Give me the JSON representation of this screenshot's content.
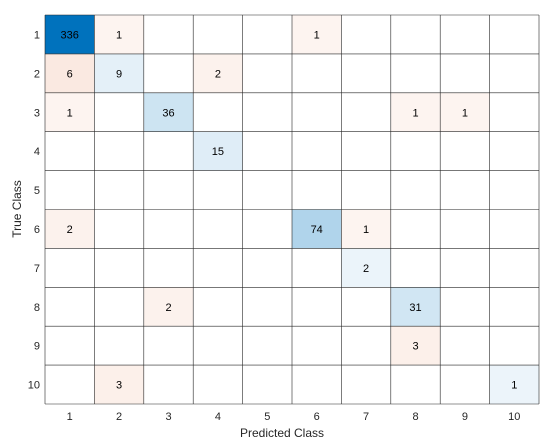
{
  "chart_data": {
    "type": "heatmap",
    "title": "",
    "xlabel": "Predicted Class",
    "ylabel": "True Class",
    "x_categories": [
      "1",
      "2",
      "3",
      "4",
      "5",
      "6",
      "7",
      "8",
      "9",
      "10"
    ],
    "y_categories": [
      "1",
      "2",
      "3",
      "4",
      "5",
      "6",
      "7",
      "8",
      "9",
      "10"
    ],
    "matrix": [
      [
        336,
        1,
        0,
        0,
        0,
        1,
        0,
        0,
        0,
        0
      ],
      [
        6,
        9,
        0,
        2,
        0,
        0,
        0,
        0,
        0,
        0
      ],
      [
        1,
        0,
        36,
        0,
        0,
        0,
        0,
        1,
        1,
        0
      ],
      [
        0,
        0,
        0,
        15,
        0,
        0,
        0,
        0,
        0,
        0
      ],
      [
        0,
        0,
        0,
        0,
        0,
        0,
        0,
        0,
        0,
        0
      ],
      [
        2,
        0,
        0,
        0,
        0,
        74,
        1,
        0,
        0,
        0
      ],
      [
        0,
        0,
        0,
        0,
        0,
        0,
        2,
        0,
        0,
        0
      ],
      [
        0,
        0,
        2,
        0,
        0,
        0,
        0,
        31,
        0,
        0
      ],
      [
        0,
        0,
        0,
        0,
        0,
        0,
        0,
        3,
        0,
        0
      ],
      [
        0,
        3,
        0,
        0,
        0,
        0,
        0,
        0,
        0,
        1
      ]
    ],
    "zero_cells_blank": true,
    "grid": true,
    "colors": {
      "diagonal": "#0072BD",
      "off_diagonal": "#D95319",
      "grid": "#262626",
      "text": "#000000",
      "text_on_dark": "#ffffff"
    }
  }
}
